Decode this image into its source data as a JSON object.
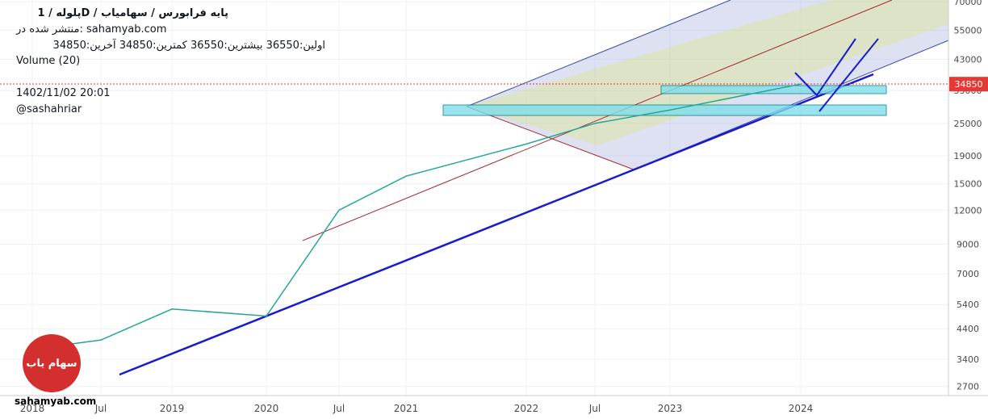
{
  "header": {
    "title": "پلوله / 1D / پایه فرابورس / سهامیاب",
    "published": "منتشر شده در: sahamyab.com",
    "stats": "اولین:36550  بیشترین:36550  کمترین:34850  آخرین:34850",
    "volume": "Volume (20)",
    "datetime": "1402/11/02 20:01",
    "author": "@sashahriar"
  },
  "footer": {
    "site": "sahamyab.com",
    "logo_text": "سهام یاب"
  },
  "chart_data": {
    "type": "line",
    "log_scale": true,
    "grid": true,
    "categories": [
      "2018",
      "Jul",
      "2019",
      "2020",
      "Jul",
      "2021",
      "2022",
      "Jul",
      "2023",
      "2024"
    ],
    "series": [
      {
        "name": "پلوله",
        "color": "#26a69a",
        "values": [
          3700,
          4000,
          5200,
          4900,
          12000,
          16000,
          21000,
          25000,
          28000,
          34850
        ]
      }
    ],
    "last_price": 34850,
    "ylim": [
      2500,
      71000
    ],
    "yticks": [
      2700,
      3400,
      4400,
      5400,
      7000,
      9000,
      12000,
      15000,
      19000,
      25000,
      33000,
      43000,
      55000,
      70000
    ]
  }
}
